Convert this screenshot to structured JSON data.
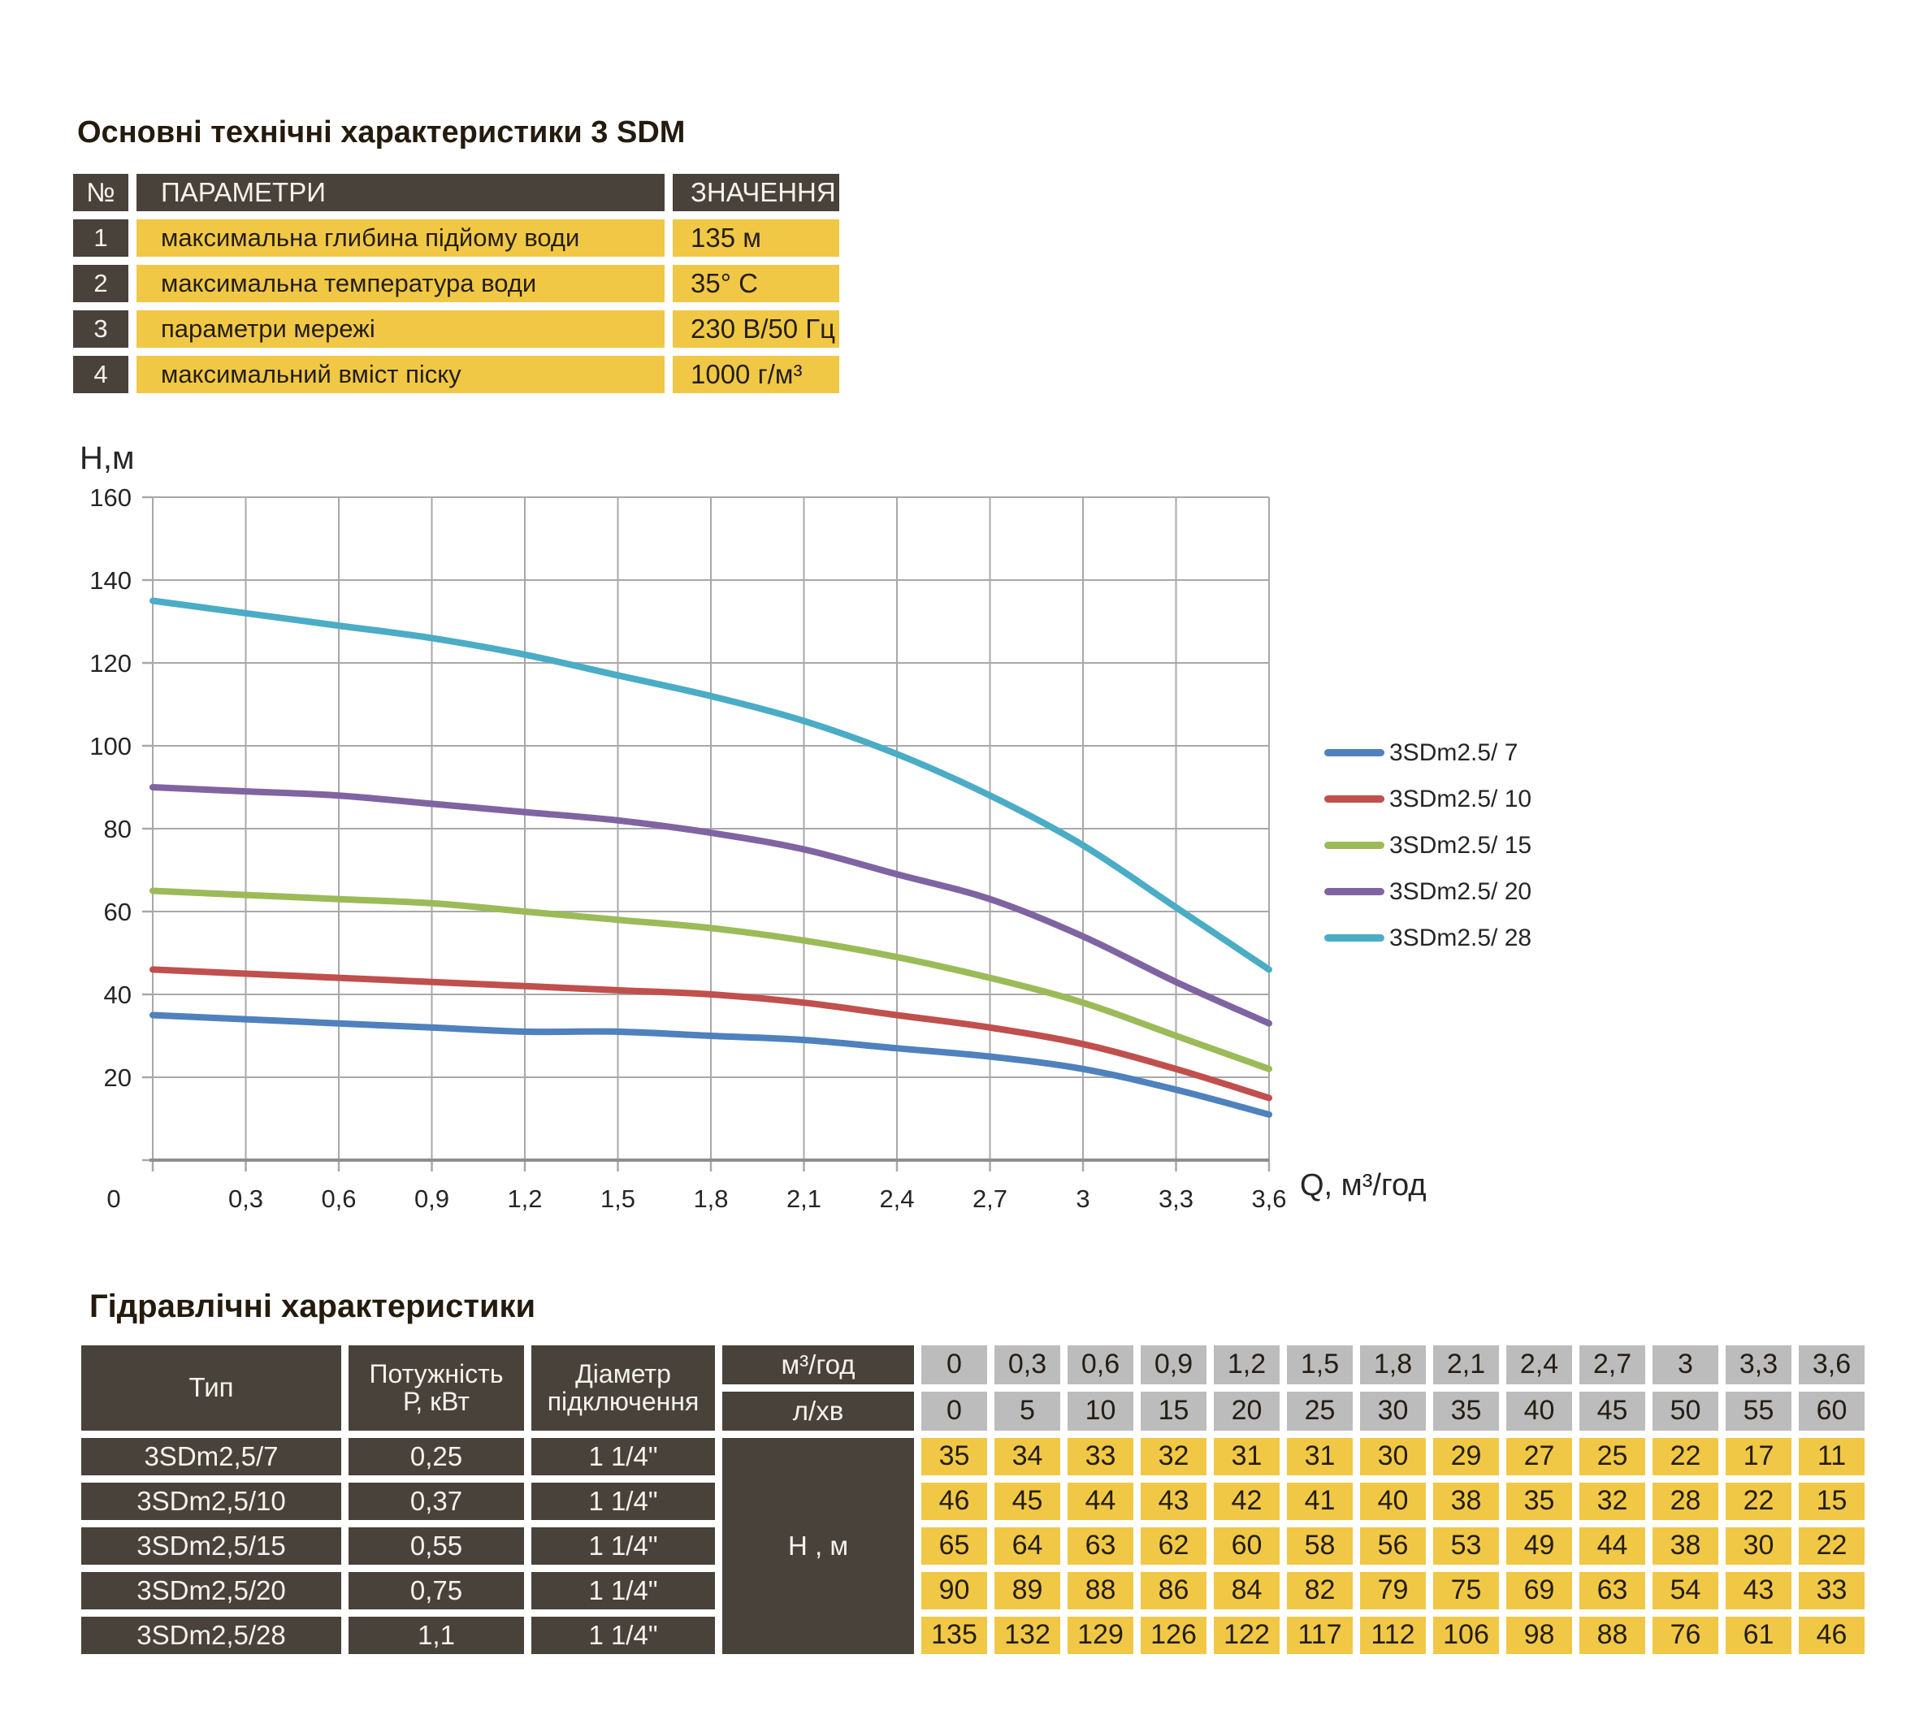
{
  "top_table": {
    "title": "Основні технічні характеристики 3 SDM",
    "headers": {
      "num": "№",
      "param": "ПАРАМЕТРИ",
      "value": "ЗНАЧЕННЯ"
    },
    "rows": [
      {
        "num": "1",
        "param": "максимальна глибина підйому води",
        "value": "135 м"
      },
      {
        "num": "2",
        "param": "максимальна температура води",
        "value": "35° С"
      },
      {
        "num": "3",
        "param": "параметри мережі",
        "value": "230 В/50 Гц"
      },
      {
        "num": "4",
        "param": "максимальний вміст піску",
        "value": "1000 г/м³"
      }
    ]
  },
  "chart_data": {
    "type": "line",
    "title": "",
    "ylabel": "Н,м",
    "xlabel": "Q,  м³/год",
    "x": [
      0,
      0.3,
      0.6,
      0.9,
      1.2,
      1.5,
      1.8,
      2.1,
      2.4,
      2.7,
      3,
      3.3,
      3.6
    ],
    "x_tick_labels": [
      "0",
      "0,3",
      "0,6",
      "0,9",
      "1,2",
      "1,5",
      "1,8",
      "2,1",
      "2,4",
      "2,7",
      "3",
      "3,3",
      "3,6"
    ],
    "ylim": [
      0,
      160
    ],
    "y_ticks": [
      20,
      40,
      60,
      80,
      100,
      120,
      140,
      160
    ],
    "grid": true,
    "legend_position": "right",
    "grid_color": "#a8a8a8",
    "axis_color": "#8f8f8f",
    "series": [
      {
        "name": "3SDm2.5/ 7",
        "color": "#4f81bd",
        "values": [
          35,
          34,
          33,
          32,
          31,
          31,
          30,
          29,
          27,
          25,
          22,
          17,
          11
        ]
      },
      {
        "name": "3SDm2.5/ 10",
        "color": "#c0504d",
        "values": [
          46,
          45,
          44,
          43,
          42,
          41,
          40,
          38,
          35,
          32,
          28,
          22,
          15
        ]
      },
      {
        "name": "3SDm2.5/ 15",
        "color": "#9bbb59",
        "values": [
          65,
          64,
          63,
          62,
          60,
          58,
          56,
          53,
          49,
          44,
          38,
          30,
          22
        ]
      },
      {
        "name": "3SDm2.5/ 20",
        "color": "#8064a2",
        "values": [
          90,
          89,
          88,
          86,
          84,
          82,
          79,
          75,
          69,
          63,
          54,
          43,
          33
        ]
      },
      {
        "name": "3SDm2.5/ 28",
        "color": "#4bacc6",
        "values": [
          135,
          132,
          129,
          126,
          122,
          117,
          112,
          106,
          98,
          88,
          76,
          61,
          46
        ]
      }
    ]
  },
  "bottom_table": {
    "title": "Гідравлічні характеристики",
    "col_headers": {
      "type": "Тип",
      "power_line1": "Потужність",
      "power_line2": "Р, кВт",
      "diameter_line1": "Діаметр",
      "diameter_line2": "підключення",
      "flow_unit_m3": "м³/год",
      "flow_unit_lmin": "л/хв",
      "head_unit": "Н , м"
    },
    "flow_m3h": [
      "0",
      "0,3",
      "0,6",
      "0,9",
      "1,2",
      "1,5",
      "1,8",
      "2,1",
      "2,4",
      "2,7",
      "3",
      "3,3",
      "3,6"
    ],
    "flow_lmin": [
      "0",
      "5",
      "10",
      "15",
      "20",
      "25",
      "30",
      "35",
      "40",
      "45",
      "50",
      "55",
      "60"
    ],
    "rows": [
      {
        "type": "3SDm2,5/7",
        "power": "0,25",
        "diameter": "1 1/4\"",
        "heads": [
          "35",
          "34",
          "33",
          "32",
          "31",
          "31",
          "30",
          "29",
          "27",
          "25",
          "22",
          "17",
          "11"
        ]
      },
      {
        "type": "3SDm2,5/10",
        "power": "0,37",
        "diameter": "1 1/4\"",
        "heads": [
          "46",
          "45",
          "44",
          "43",
          "42",
          "41",
          "40",
          "38",
          "35",
          "32",
          "28",
          "22",
          "15"
        ]
      },
      {
        "type": "3SDm2,5/15",
        "power": "0,55",
        "diameter": "1 1/4\"",
        "heads": [
          "65",
          "64",
          "63",
          "62",
          "60",
          "58",
          "56",
          "53",
          "49",
          "44",
          "38",
          "30",
          "22"
        ]
      },
      {
        "type": "3SDm2,5/20",
        "power": "0,75",
        "diameter": "1 1/4\"",
        "heads": [
          "90",
          "89",
          "88",
          "86",
          "84",
          "82",
          "79",
          "75",
          "69",
          "63",
          "54",
          "43",
          "33"
        ]
      },
      {
        "type": "3SDm2,5/28",
        "power": "1,1",
        "diameter": "1 1/4\"",
        "heads": [
          "135",
          "132",
          "129",
          "126",
          "122",
          "117",
          "112",
          "106",
          "98",
          "88",
          "76",
          "61",
          "46"
        ]
      }
    ]
  },
  "colors": {
    "cell_dark": "#48423a",
    "cell_yellow": "#f1c845",
    "cell_grey": "#bcbcbc"
  }
}
